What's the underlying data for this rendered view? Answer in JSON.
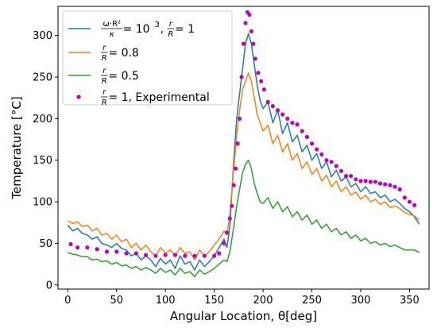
{
  "chart_data": {
    "type": "line",
    "xlabel": "Angular Location, θ[deg]",
    "ylabel": "Temperature [°C]",
    "xlim": [
      -10,
      370
    ],
    "ylim": [
      -5,
      335
    ],
    "xticks": [
      0,
      50,
      100,
      150,
      200,
      250,
      300,
      350
    ],
    "yticks": [
      0,
      50,
      100,
      150,
      200,
      250,
      300
    ],
    "grid": false,
    "legend_position": "top-left",
    "series": [
      {
        "name": "ω·R²/κ = 10³, r/R = 1",
        "legend_parts": {
          "num": "ω·R²",
          "den": "κ",
          "eq": " = 10",
          "sup": "3",
          "sep": ", ",
          "rnum": "r",
          "rden": "R",
          "tail": " = 1"
        },
        "kind": "line",
        "color": "#1f77b4",
        "x": [
          0,
          5,
          10,
          15,
          20,
          25,
          30,
          35,
          40,
          45,
          50,
          55,
          60,
          65,
          70,
          75,
          80,
          85,
          90,
          95,
          100,
          105,
          110,
          115,
          120,
          125,
          130,
          135,
          140,
          145,
          150,
          155,
          160,
          163,
          166,
          170,
          173,
          176,
          179,
          182,
          185,
          188,
          191,
          194,
          197,
          200,
          205,
          210,
          215,
          220,
          225,
          230,
          235,
          240,
          245,
          250,
          255,
          260,
          265,
          270,
          275,
          280,
          285,
          290,
          295,
          300,
          305,
          310,
          315,
          320,
          325,
          330,
          335,
          340,
          345,
          350,
          355,
          360
        ],
        "y": [
          72,
          65,
          68,
          62,
          60,
          55,
          58,
          50,
          48,
          45,
          50,
          44,
          42,
          35,
          38,
          30,
          35,
          30,
          22,
          32,
          25,
          30,
          20,
          35,
          25,
          28,
          18,
          30,
          22,
          28,
          35,
          45,
          55,
          45,
          70,
          150,
          200,
          230,
          260,
          290,
          302,
          290,
          265,
          240,
          222,
          212,
          220,
          195,
          210,
          182,
          195,
          172,
          180,
          160,
          168,
          150,
          158,
          140,
          148,
          130,
          138,
          125,
          130,
          118,
          122,
          112,
          118,
          110,
          112,
          105,
          108,
          100,
          103,
          98,
          92,
          88,
          82,
          73
        ]
      },
      {
        "name": "r/R = 0.8",
        "legend_parts": {
          "rnum": "r",
          "rden": "R",
          "tail": " = 0.8"
        },
        "kind": "line",
        "color": "#ff7f0e",
        "x": [
          0,
          5,
          10,
          15,
          20,
          25,
          30,
          35,
          40,
          45,
          50,
          55,
          60,
          65,
          70,
          75,
          80,
          85,
          90,
          95,
          100,
          105,
          110,
          115,
          120,
          125,
          130,
          135,
          140,
          145,
          150,
          155,
          160,
          163,
          166,
          170,
          173,
          176,
          179,
          182,
          185,
          188,
          191,
          194,
          197,
          200,
          205,
          210,
          215,
          220,
          225,
          230,
          235,
          240,
          245,
          250,
          255,
          260,
          265,
          270,
          275,
          280,
          285,
          290,
          295,
          300,
          305,
          310,
          315,
          320,
          325,
          330,
          335,
          340,
          345,
          350,
          355,
          360
        ],
        "y": [
          77,
          74,
          76,
          70,
          72,
          65,
          68,
          60,
          62,
          55,
          60,
          52,
          55,
          45,
          50,
          42,
          48,
          40,
          35,
          45,
          38,
          42,
          35,
          45,
          38,
          40,
          30,
          42,
          35,
          40,
          48,
          55,
          65,
          60,
          85,
          140,
          180,
          210,
          235,
          245,
          255,
          245,
          225,
          205,
          195,
          185,
          192,
          170,
          180,
          160,
          170,
          150,
          158,
          140,
          148,
          133,
          140,
          125,
          132,
          118,
          125,
          112,
          118,
          108,
          112,
          103,
          108,
          100,
          103,
          97,
          100,
          93,
          95,
          92,
          87,
          85,
          83,
          78
        ]
      },
      {
        "name": "r/R = 0.5",
        "legend_parts": {
          "rnum": "r",
          "rden": "R",
          "tail": " = 0.5"
        },
        "kind": "line",
        "color": "#2ca02c",
        "x": [
          0,
          5,
          10,
          15,
          20,
          25,
          30,
          35,
          40,
          45,
          50,
          55,
          60,
          65,
          70,
          75,
          80,
          85,
          90,
          95,
          100,
          105,
          110,
          115,
          120,
          125,
          130,
          135,
          140,
          145,
          150,
          155,
          160,
          163,
          166,
          170,
          173,
          176,
          179,
          182,
          185,
          188,
          191,
          194,
          197,
          200,
          205,
          210,
          215,
          220,
          225,
          230,
          235,
          240,
          245,
          250,
          255,
          260,
          265,
          270,
          275,
          280,
          285,
          290,
          295,
          300,
          305,
          310,
          315,
          320,
          325,
          330,
          335,
          340,
          345,
          350,
          355,
          360
        ],
        "y": [
          39,
          37,
          36,
          34,
          34,
          30,
          31,
          28,
          29,
          25,
          27,
          23,
          24,
          20,
          22,
          18,
          21,
          18,
          14,
          20,
          15,
          18,
          12,
          20,
          14,
          16,
          10,
          18,
          13,
          16,
          20,
          25,
          30,
          28,
          40,
          70,
          95,
          115,
          135,
          145,
          150,
          140,
          122,
          110,
          100,
          98,
          105,
          92,
          100,
          88,
          94,
          82,
          88,
          78,
          84,
          73,
          78,
          68,
          73,
          64,
          68,
          60,
          64,
          56,
          60,
          53,
          56,
          50,
          52,
          48,
          50,
          46,
          48,
          45,
          42,
          42,
          42,
          39
        ]
      },
      {
        "name": "r/R = 1, Experimental",
        "legend_parts": {
          "rnum": "r",
          "rden": "R",
          "tail": " = 1, Experimental"
        },
        "kind": "scatter",
        "color": "#bf00bf",
        "x": [
          3,
          10,
          20,
          30,
          40,
          50,
          60,
          70,
          80,
          90,
          100,
          110,
          120,
          130,
          140,
          150,
          155,
          160,
          163,
          166,
          168,
          170,
          172,
          174,
          176,
          178,
          180,
          182,
          184,
          186,
          188,
          190,
          192,
          195,
          198,
          201,
          205,
          210,
          215,
          220,
          225,
          230,
          235,
          240,
          245,
          250,
          255,
          260,
          265,
          270,
          275,
          280,
          285,
          290,
          295,
          300,
          305,
          310,
          315,
          320,
          325,
          330,
          335,
          340,
          345,
          350,
          355
        ],
        "y": [
          49,
          45,
          45,
          43,
          40,
          40,
          38,
          38,
          36,
          35,
          36,
          36,
          35,
          35,
          35,
          35,
          38,
          50,
          63,
          80,
          95,
          120,
          140,
          170,
          200,
          250,
          290,
          315,
          328,
          325,
          305,
          290,
          272,
          255,
          245,
          235,
          220,
          215,
          210,
          205,
          200,
          195,
          193,
          185,
          178,
          170,
          163,
          157,
          150,
          148,
          143,
          137,
          131,
          131,
          127,
          125,
          125,
          124,
          124,
          122,
          121,
          120,
          118,
          115,
          105,
          100,
          96
        ]
      }
    ]
  }
}
